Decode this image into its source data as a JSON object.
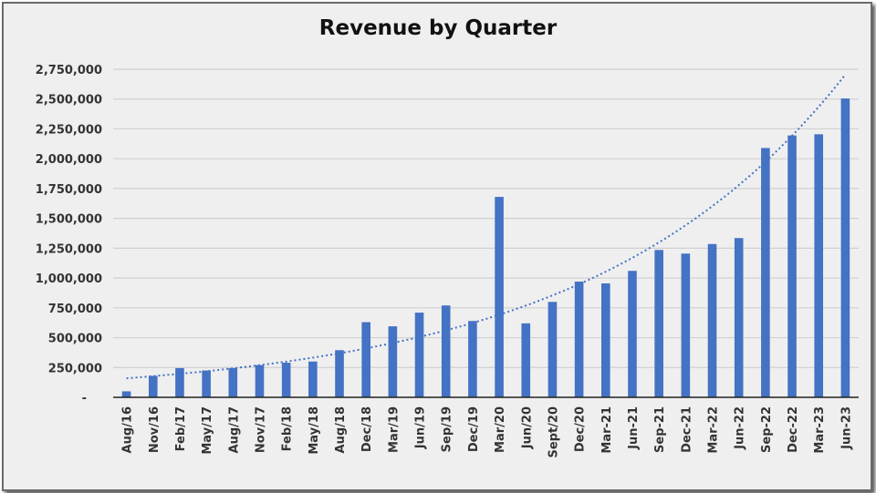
{
  "chart_data": {
    "type": "bar",
    "title": "Revenue by Quarter",
    "xlabel": "",
    "ylabel": "",
    "ylim": [
      0,
      2750000
    ],
    "yticks": [
      0,
      250000,
      500000,
      750000,
      1000000,
      1250000,
      1500000,
      1750000,
      2000000,
      2250000,
      2500000,
      2750000
    ],
    "ytick_labels": [
      "-",
      "250,000",
      "500,000",
      "750,000",
      "1,000,000",
      "1,250,000",
      "1,500,000",
      "1,750,000",
      "2,000,000",
      "2,250,000",
      "2,500,000",
      "2,750,000"
    ],
    "grid": true,
    "bar_color": "#4472c4",
    "trendline": {
      "type": "exponential",
      "style": "dotted",
      "color": "#4472c4"
    },
    "categories": [
      "Aug/16",
      "Nov/16",
      "Feb/17",
      "May/17",
      "Aug/17",
      "Nov/17",
      "Feb/18",
      "May/18",
      "Aug/18",
      "Dec/18",
      "Mar/19",
      "Jun/19",
      "Sep/19",
      "Dec/19",
      "Mar/20",
      "Jun/20",
      "Sept/20",
      "Dec/20",
      "Mar-21",
      "Jun-21",
      "Sep-21",
      "Dec-21",
      "Mar-22",
      "Jun-22",
      "Sep-22",
      "Dec-22",
      "Mar-23",
      "Jun-23"
    ],
    "values": [
      50000,
      180000,
      245000,
      225000,
      245000,
      270000,
      290000,
      300000,
      395000,
      630000,
      595000,
      710000,
      770000,
      640000,
      1680000,
      620000,
      800000,
      970000,
      955000,
      1060000,
      1235000,
      1205000,
      1285000,
      1335000,
      2090000,
      2195000,
      2205000,
      2505000
    ]
  }
}
